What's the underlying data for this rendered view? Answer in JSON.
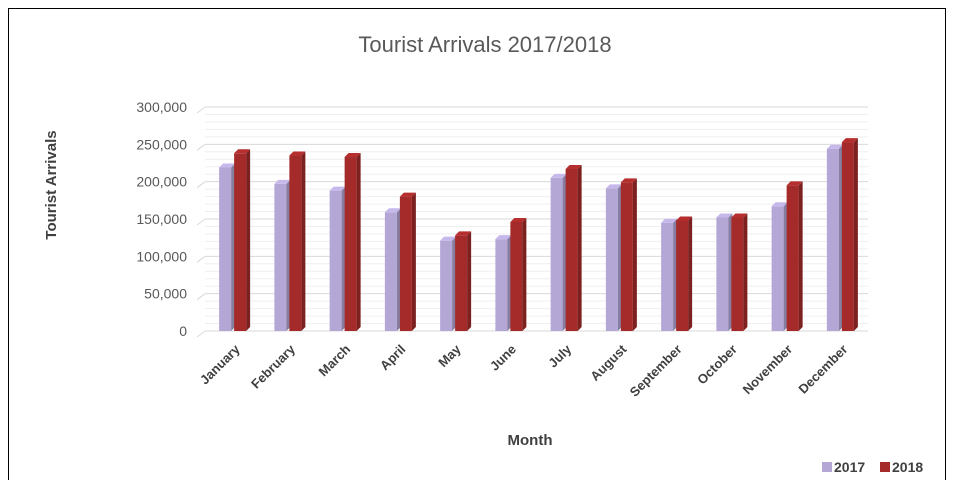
{
  "chart_data": {
    "type": "bar",
    "title": "Tourist Arrivals 2017/2018",
    "xlabel": "Month",
    "ylabel": "Tourist Arrivals",
    "ylim": [
      0,
      300000
    ],
    "yticks": [
      "0",
      "50,000",
      "100,000",
      "150,000",
      "200,000",
      "250,000",
      "300,000"
    ],
    "categories": [
      "January",
      "February",
      "March",
      "April",
      "May",
      "June",
      "July",
      "August",
      "September",
      "October",
      "November",
      "December"
    ],
    "series": [
      {
        "name": "2017",
        "color": "#B4A7D6",
        "values": [
          219000,
          197000,
          188000,
          159000,
          121000,
          123000,
          205000,
          191000,
          145000,
          152000,
          167000,
          244000
        ]
      },
      {
        "name": "2018",
        "color": "#A52A2A",
        "values": [
          238000,
          235000,
          233000,
          180000,
          128000,
          146000,
          217000,
          199000,
          148000,
          152000,
          195000,
          253000
        ]
      }
    ],
    "grid": true,
    "legend": "bottom-right"
  }
}
